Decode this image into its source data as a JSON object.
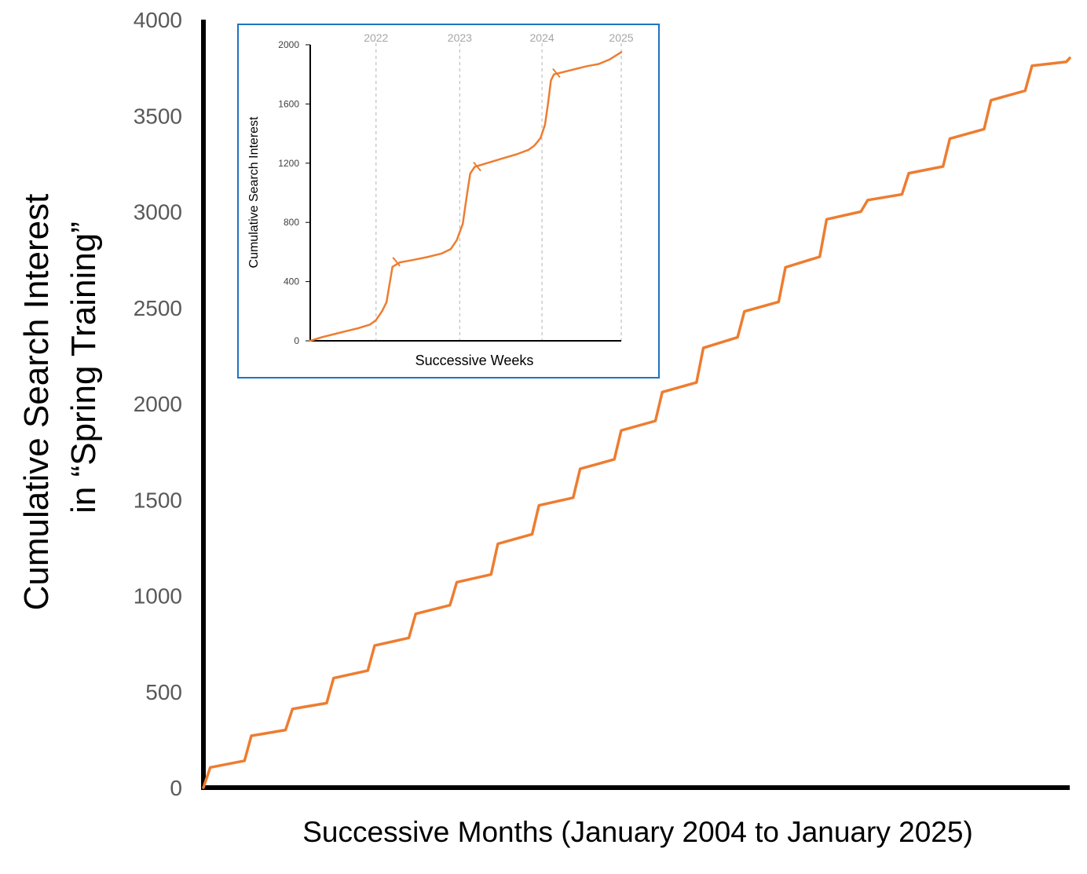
{
  "chart_data": [
    {
      "type": "line",
      "title": "",
      "xlabel": "Successive Months (January 2004 to January 2025)",
      "ylabel_line1": "Cumulative Search Interest",
      "ylabel_line2": "in “Spring Training”",
      "ylim": [
        0,
        4000
      ],
      "yticks": [
        0,
        500,
        1000,
        1500,
        2000,
        2500,
        3000,
        3500,
        4000
      ],
      "ytick_labels": [
        "0",
        "500",
        "1000",
        "1500",
        "2000",
        "2500",
        "3000",
        "3500",
        "4000"
      ],
      "xlim": [
        0,
        253
      ],
      "grid": false,
      "legend": "none",
      "colors": {
        "series": "#ED7D31",
        "axis": "#000000",
        "tick_label": "#595959"
      },
      "series": [
        {
          "pattern": "annual stepped increase (values read at the start of each year's March step)",
          "x": [
            0,
            2,
            12,
            14,
            24,
            26,
            36,
            38,
            48,
            50,
            60,
            62,
            72,
            74,
            84,
            86,
            96,
            98,
            108,
            110,
            120,
            122,
            132,
            134,
            144,
            146,
            156,
            158,
            168,
            170,
            180,
            182,
            192,
            194,
            204,
            206,
            216,
            218,
            228,
            230,
            240,
            242,
            252,
            253
          ],
          "y": [
            0,
            105,
            140,
            270,
            300,
            410,
            440,
            570,
            610,
            740,
            780,
            905,
            950,
            1070,
            1110,
            1270,
            1320,
            1470,
            1510,
            1660,
            1710,
            1860,
            1910,
            2060,
            2110,
            2290,
            2345,
            2480,
            2530,
            2710,
            2765,
            2960,
            3000,
            3060,
            3090,
            3200,
            3235,
            3380,
            3430,
            3580,
            3630,
            3760,
            3780,
            3800
          ]
        }
      ]
    },
    {
      "type": "line",
      "title": "",
      "xlabel": "Successive Weeks",
      "ylabel": "Cumulative Search Interest",
      "ylim": [
        0,
        2000
      ],
      "yticks": [
        0,
        400,
        800,
        1200,
        1600,
        2000
      ],
      "ytick_labels": [
        "0",
        "400",
        "800",
        "1200",
        "1600",
        "2000"
      ],
      "xlim": [
        0,
        208
      ],
      "year_markers": [
        {
          "x": 44,
          "label": "2022"
        },
        {
          "x": 100,
          "label": "2023"
        },
        {
          "x": 155,
          "label": "2024"
        },
        {
          "x": 208,
          "label": "2025"
        }
      ],
      "grid": false,
      "legend": "none",
      "colors": {
        "series": "#ED7D31",
        "frame": "#1E73BE",
        "marker_line": "#BFBFBF",
        "marker_label": "#A6A6A6"
      },
      "series": [
        {
          "x": [
            0,
            8,
            16,
            24,
            32,
            40,
            44,
            48,
            51,
            53,
            55,
            60,
            68,
            78,
            88,
            94,
            98,
            102,
            105,
            107,
            110,
            118,
            128,
            138,
            146,
            150,
            154,
            157,
            159,
            161,
            163,
            167,
            175,
            185,
            193,
            200,
            208
          ],
          "y": [
            0,
            25,
            45,
            65,
            85,
            110,
            140,
            200,
            260,
            380,
            500,
            530,
            545,
            565,
            590,
            620,
            680,
            790,
            1000,
            1130,
            1175,
            1200,
            1230,
            1260,
            1290,
            1320,
            1370,
            1460,
            1600,
            1760,
            1800,
            1810,
            1830,
            1855,
            1870,
            1900,
            1950
          ]
        }
      ],
      "annotation_ticks": [
        {
          "x": 60,
          "y": 505
        },
        {
          "x": 114,
          "y": 1148
        },
        {
          "x": 167,
          "y": 1780
        }
      ]
    }
  ]
}
